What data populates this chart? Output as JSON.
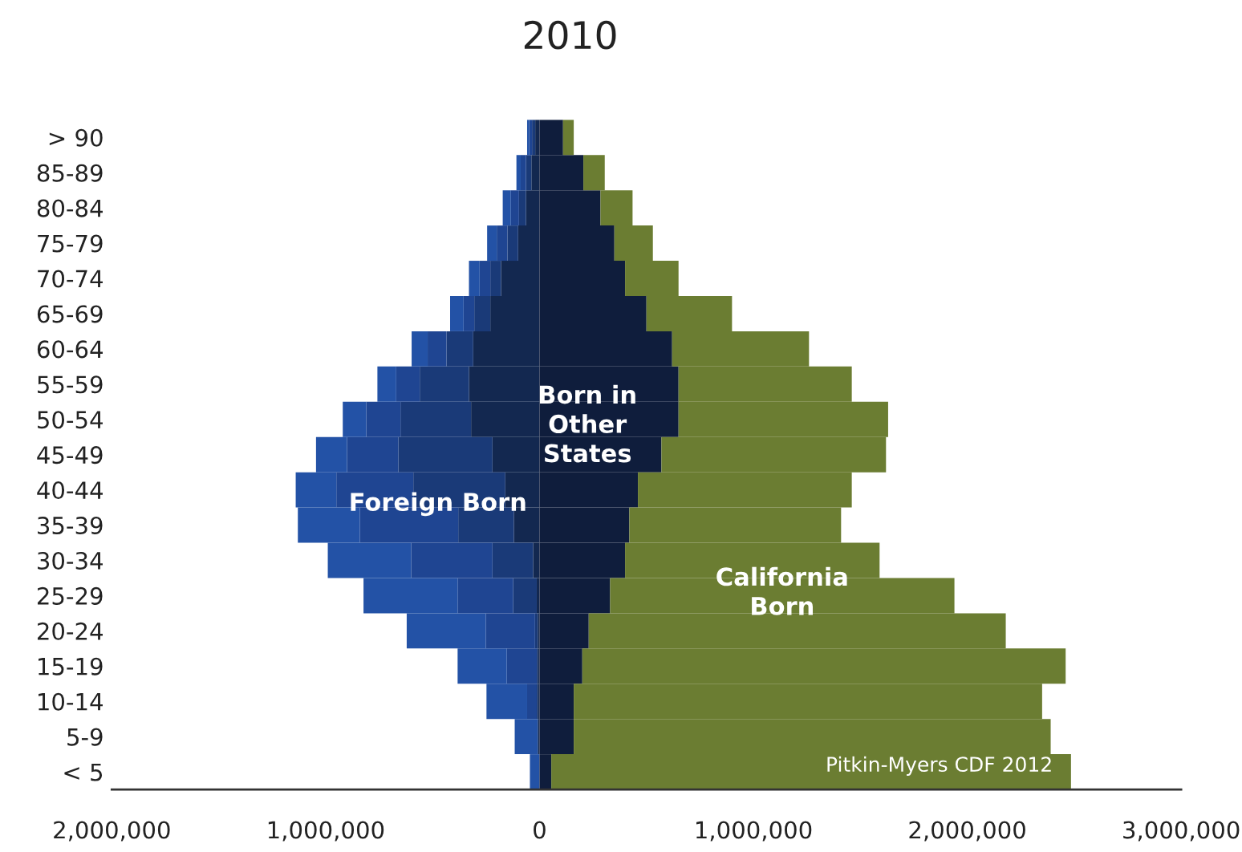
{
  "chart_data": {
    "type": "bar",
    "orientation": "horizontal",
    "stacked": true,
    "title": "2010",
    "categories": [
      "> 90",
      "85-89",
      "80-84",
      "75-79",
      "70-74",
      "65-69",
      "60-64",
      "55-59",
      "50-54",
      "45-49",
      "40-44",
      "35-39",
      "30-34",
      "25-29",
      "20-24",
      "15-19",
      "10-14",
      "5-9",
      "< 5"
    ],
    "series": [
      {
        "color": "#132850",
        "values": [
          -20000,
          -38000,
          -63000,
          -100000,
          -180000,
          -230000,
          -310000,
          -330000,
          -320000,
          -220000,
          -160000,
          -120000,
          -30000,
          -13000,
          -8000,
          -8000,
          -8000,
          -8000,
          0
        ]
      },
      {
        "color": "#1a3a78",
        "values": [
          -15000,
          -25000,
          -33000,
          -50000,
          -50000,
          -75000,
          -125000,
          -230000,
          -330000,
          -440000,
          -430000,
          -260000,
          -190000,
          -110000,
          -13000,
          -5000,
          -5000,
          0,
          0
        ]
      },
      {
        "name": "Foreign Born",
        "color": "#1f4592",
        "values": [
          -13000,
          -25000,
          -38000,
          -50000,
          -50000,
          -50000,
          -88000,
          -110000,
          -160000,
          -240000,
          -360000,
          -460000,
          -380000,
          -260000,
          -230000,
          -140000,
          -45000,
          0,
          0
        ]
      },
      {
        "color": "#2352a6",
        "values": [
          -10000,
          -20000,
          -38000,
          -45000,
          -50000,
          -63000,
          -75000,
          -88000,
          -110000,
          -145000,
          -190000,
          -290000,
          -390000,
          -440000,
          -370000,
          -230000,
          -190000,
          -108000,
          -45000
        ]
      },
      {
        "name": "Born in\nOther\nStates",
        "color": "#0f1d3c",
        "values": [
          110000,
          205000,
          285000,
          350000,
          400000,
          500000,
          620000,
          650000,
          650000,
          570000,
          460000,
          420000,
          400000,
          330000,
          230000,
          200000,
          160000,
          160000,
          55000
        ]
      },
      {
        "name": "California\nBorn",
        "color": "#6b7d32",
        "values": [
          50000,
          100000,
          150000,
          180000,
          250000,
          400000,
          640000,
          810000,
          980000,
          1050000,
          1000000,
          990000,
          1190000,
          1610000,
          1950000,
          2260000,
          2190000,
          2230000,
          2430000
        ]
      }
    ],
    "xlim": [
      -2000000,
      3000000
    ],
    "xticks": [
      {
        "value": -2000000,
        "label": "2,000,000"
      },
      {
        "value": -1000000,
        "label": "1,000,000"
      },
      0,
      {
        "value": 1000000,
        "label": "1,000,000"
      },
      {
        "value": 2000000,
        "label": "2,000,000"
      },
      {
        "value": 3000000,
        "label": "3,000,000"
      }
    ],
    "annotations": [
      "Pitkin-Myers CDF 2012"
    ],
    "grid": false,
    "legend": false
  }
}
